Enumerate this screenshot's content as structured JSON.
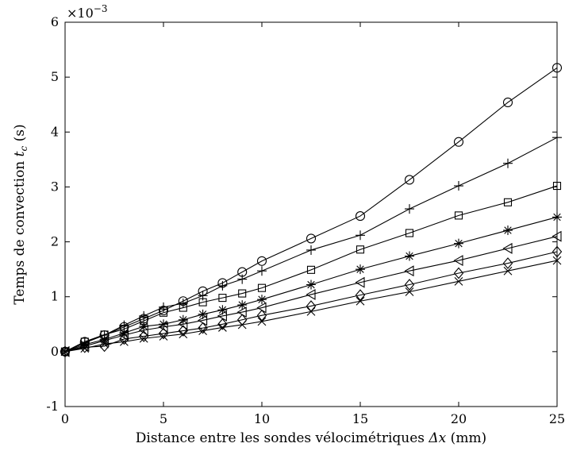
{
  "chart_data": {
    "type": "line",
    "title": "",
    "xlabel": "Distance entre les sondes vélocimétriques Δx (mm)",
    "xlabel_parts": {
      "text": "Distance entre les sondes vélocimétriques ",
      "symbol": "Δx",
      "unit": " (mm)"
    },
    "ylabel": "Temps de convection t_c (s)",
    "ylabel_parts": {
      "text": "Temps de convection ",
      "symbol": "t",
      "subscript": "c",
      "unit": " (s)"
    },
    "y_multiplier": "×10−3",
    "y_multiplier_parts": {
      "base": "×10",
      "exponent": "−3"
    },
    "xlim": [
      0,
      25
    ],
    "ylim": [
      -1,
      6
    ],
    "x_ticks": [
      0,
      5,
      10,
      15,
      20,
      25
    ],
    "x_tick_labels": [
      "0",
      "5",
      "10",
      "15",
      "20",
      "25"
    ],
    "y_ticks": [
      -1,
      0,
      1,
      2,
      3,
      4,
      5,
      6
    ],
    "y_tick_labels": [
      "-1",
      "0",
      "1",
      "2",
      "3",
      "4",
      "5",
      "6"
    ],
    "grid": false,
    "series": [
      {
        "marker": "circle",
        "x": [
          0,
          1,
          2,
          3,
          4,
          5,
          6,
          7,
          8,
          9,
          10,
          12.5,
          15,
          17.5,
          20,
          22.5,
          25
        ],
        "y": [
          0,
          0.18,
          0.3,
          0.45,
          0.6,
          0.75,
          0.92,
          1.1,
          1.25,
          1.45,
          1.65,
          2.06,
          2.47,
          3.13,
          3.82,
          4.54,
          5.17
        ]
      },
      {
        "marker": "plus",
        "x": [
          0,
          1,
          2,
          3,
          4,
          5,
          6,
          7,
          8,
          9,
          10,
          12.5,
          15,
          17.5,
          20,
          22.5,
          25
        ],
        "y": [
          0,
          0.16,
          0.3,
          0.48,
          0.65,
          0.81,
          0.88,
          1.02,
          1.2,
          1.32,
          1.47,
          1.85,
          2.12,
          2.6,
          3.02,
          3.43,
          3.9
        ]
      },
      {
        "marker": "square",
        "x": [
          0,
          1,
          2,
          3,
          4,
          5,
          6,
          7,
          8,
          9,
          10,
          12.5,
          15,
          17.5,
          20,
          22.5,
          25
        ],
        "y": [
          0,
          0.18,
          0.31,
          0.41,
          0.56,
          0.71,
          0.8,
          0.9,
          0.98,
          1.06,
          1.16,
          1.49,
          1.86,
          2.16,
          2.48,
          2.72,
          3.02
        ]
      },
      {
        "marker": "star",
        "x": [
          0,
          1,
          2,
          3,
          4,
          5,
          6,
          7,
          8,
          9,
          10,
          12.5,
          15,
          17.5,
          20,
          22.5,
          25
        ],
        "y": [
          0,
          0.13,
          0.22,
          0.34,
          0.46,
          0.5,
          0.58,
          0.68,
          0.76,
          0.85,
          0.95,
          1.22,
          1.5,
          1.74,
          1.97,
          2.21,
          2.45
        ]
      },
      {
        "marker": "triangle-left",
        "x": [
          0,
          1,
          2,
          3,
          4,
          5,
          6,
          7,
          8,
          9,
          10,
          12.5,
          15,
          17.5,
          20,
          22.5,
          25
        ],
        "y": [
          0,
          0.1,
          0.2,
          0.3,
          0.39,
          0.45,
          0.5,
          0.57,
          0.65,
          0.72,
          0.8,
          1.04,
          1.26,
          1.47,
          1.66,
          1.88,
          2.1
        ]
      },
      {
        "marker": "diamond",
        "x": [
          0,
          1,
          2,
          3,
          4,
          5,
          6,
          7,
          8,
          9,
          10,
          12.5,
          15,
          17.5,
          20,
          22.5,
          25
        ],
        "y": [
          0,
          0.08,
          0.1,
          0.23,
          0.28,
          0.33,
          0.38,
          0.43,
          0.5,
          0.58,
          0.66,
          0.83,
          1.03,
          1.22,
          1.43,
          1.61,
          1.82
        ]
      },
      {
        "marker": "x",
        "x": [
          0,
          1,
          2,
          3,
          4,
          5,
          6,
          7,
          8,
          9,
          10,
          12.5,
          15,
          17.5,
          20,
          22.5,
          25
        ],
        "y": [
          0,
          0.06,
          0.14,
          0.18,
          0.24,
          0.28,
          0.32,
          0.38,
          0.44,
          0.49,
          0.55,
          0.73,
          0.92,
          1.09,
          1.28,
          1.47,
          1.66
        ]
      }
    ]
  }
}
